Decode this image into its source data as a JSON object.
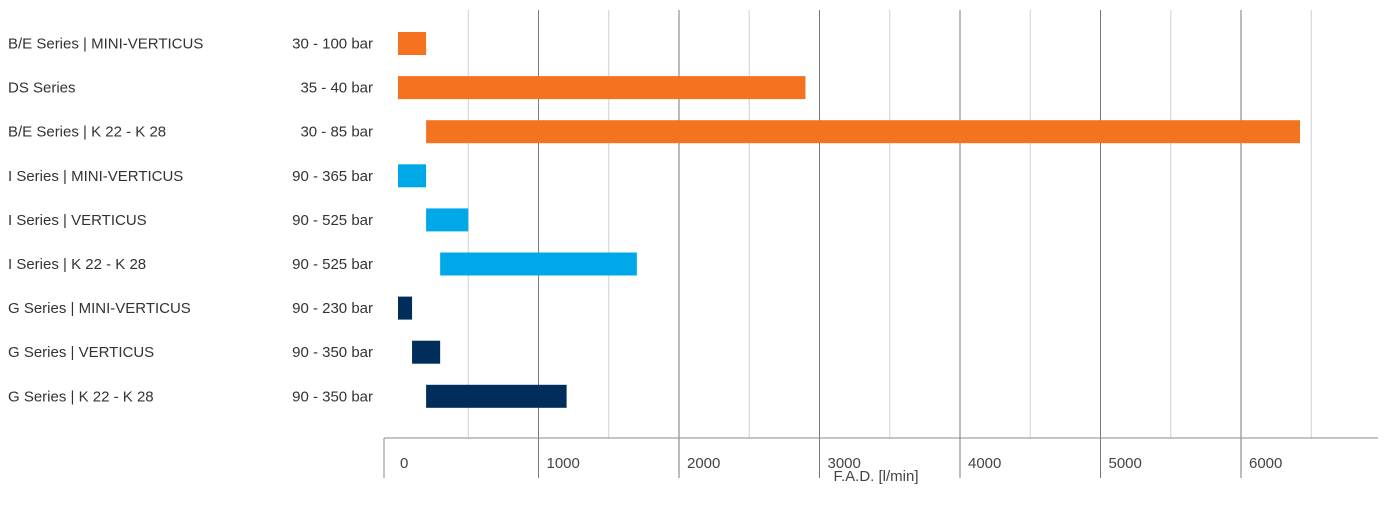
{
  "chart_data": {
    "type": "bar",
    "orientation": "horizontal",
    "xlabel": "F.A.D. [l/min]",
    "xlim": [
      0,
      6800
    ],
    "xticks": [
      0,
      1000,
      2000,
      3000,
      4000,
      5000,
      6000
    ],
    "grid": true,
    "rows": [
      {
        "category": "B/E Series | MINI-VERTICUS",
        "range_label": "30 - 100 bar",
        "start": 0,
        "end": 200,
        "color": "#f47321"
      },
      {
        "category": "DS Series",
        "range_label": "35 - 40 bar",
        "start": 0,
        "end": 2900,
        "color": "#f47321"
      },
      {
        "category": "B/E Series  |  K 22 - K 28",
        "range_label": "30 - 85 bar",
        "start": 200,
        "end": 6420,
        "color": "#f47321"
      },
      {
        "category": "I Series  |  MINI-VERTICUS",
        "range_label": "90 - 365 bar",
        "start": 0,
        "end": 200,
        "color": "#00a8e8"
      },
      {
        "category": "I Series  |  VERTICUS",
        "range_label": "90 - 525 bar",
        "start": 200,
        "end": 500,
        "color": "#00a8e8"
      },
      {
        "category": "I Series  |  K 22 - K 28",
        "range_label": "90 - 525 bar",
        "start": 300,
        "end": 1700,
        "color": "#00a8e8"
      },
      {
        "category": "G Series  |  MINI-VERTICUS",
        "range_label": "90 - 230 bar",
        "start": 0,
        "end": 100,
        "color": "#002d59"
      },
      {
        "category": "G Series  |  VERTICUS",
        "range_label": "90 - 350 bar",
        "start": 100,
        "end": 300,
        "color": "#002d59"
      },
      {
        "category": "G Series  |  K 22 - K 28",
        "range_label": "90 - 350 bar",
        "start": 200,
        "end": 1200,
        "color": "#002d59"
      }
    ]
  }
}
